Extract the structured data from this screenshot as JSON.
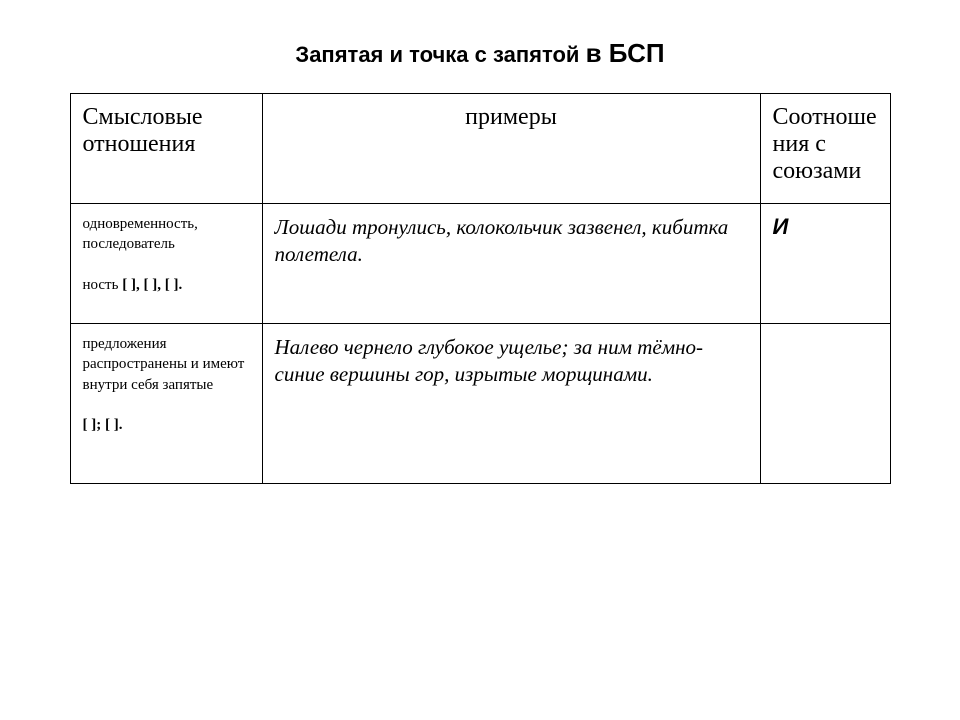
{
  "title": {
    "part1": "Запятая и точка с запятой ",
    "part2": "в БСП"
  },
  "headers": {
    "col1": "Смысловые отношения",
    "col2": "примеры",
    "col3": "Соотноше ния с союзами"
  },
  "row1": {
    "rel_line1": "одновременность, последователь",
    "rel_line2_prefix": "ность ",
    "rel_brackets": "[ ], [ ], [ ].",
    "example": "Лошади тронулись, колокольчик зазвенел, кибитка полетела.",
    "conj": "И"
  },
  "row2": {
    "rel_text": "предложения распространены и имеют внутри себя запятые",
    "rel_brackets": "[ ]; [ ].",
    "example": "Налево чернело глубокое ущелье; за ним тёмно-синие вершины гор, изрытые морщинами.",
    "conj": ""
  }
}
